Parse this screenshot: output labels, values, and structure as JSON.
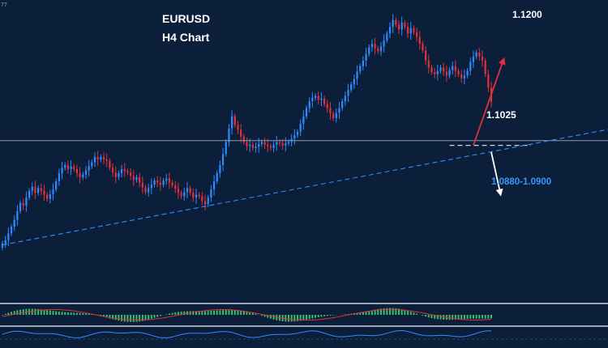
{
  "chart_data": {
    "type": "candlestick",
    "symbol": "EURUSD",
    "timeframe_label": "H4 Chart",
    "ylim": [
      1.08,
      1.123
    ],
    "bullish_color": "#2f8cff",
    "bearish_color": "#e2313a",
    "background_color": "#0b1e3a",
    "grid": false,
    "horizontal_line": 1.1032,
    "support_level": 1.1025,
    "trendline": {
      "from": [
        0,
        1.0878
      ],
      "to": [
        199,
        1.1045
      ]
    },
    "annotations": {
      "upper_target": "1.1200",
      "support": "1.1025",
      "lower_target": "1.0880-1.0900",
      "top_left_partial": "77"
    },
    "forecast_arrows": [
      {
        "direction": "up",
        "color": "#e2313a",
        "from_bar": 158,
        "from": 1.1025,
        "to_bar": 168,
        "to": 1.115
      },
      {
        "direction": "down",
        "color": "#ffffff",
        "from_bar": 164,
        "from": 1.1015,
        "to_bar": 167,
        "to": 1.0955
      }
    ],
    "closes": [
      1.088,
      1.0885,
      1.0895,
      1.0905,
      1.0915,
      1.0928,
      1.094,
      1.0936,
      1.0948,
      1.0958,
      1.0964,
      1.0955,
      1.0962,
      1.0958,
      1.0952,
      1.0946,
      1.0953,
      1.096,
      1.0972,
      1.0984,
      1.0992,
      1.0996,
      1.099,
      1.0994,
      1.099,
      1.0984,
      1.0978,
      1.0982,
      1.0988,
      1.0994,
      1.1,
      1.1008,
      1.1004,
      1.1008,
      1.1004,
      1.1002,
      1.0992,
      1.0985,
      1.0978,
      1.0984,
      1.099,
      1.0987,
      1.0985,
      1.098,
      1.0974,
      1.0978,
      1.097,
      1.0963,
      1.0956,
      1.0962,
      1.0967,
      1.0973,
      1.097,
      1.0967,
      1.0973,
      1.0976,
      1.097,
      1.0966,
      1.0961,
      1.0955,
      1.095,
      1.0956,
      1.0962,
      1.0955,
      1.0948,
      1.0952,
      1.095,
      1.0943,
      1.0938,
      1.0948,
      1.096,
      1.0972,
      1.0984,
      1.0996,
      1.1012,
      1.103,
      1.105,
      1.1068,
      1.1055,
      1.1048,
      1.1038,
      1.103,
      1.1024,
      1.1026,
      1.1021,
      1.1023,
      1.1027,
      1.103,
      1.1026,
      1.1024,
      1.1021,
      1.1026,
      1.103,
      1.1028,
      1.1025,
      1.1028,
      1.103,
      1.1035,
      1.104,
      1.1045,
      1.1057,
      1.1068,
      1.108,
      1.109,
      1.1095,
      1.1098,
      1.1092,
      1.1094,
      1.1086,
      1.108,
      1.1072,
      1.1065,
      1.1073,
      1.108,
      1.109,
      1.1098,
      1.1107,
      1.1115,
      1.1123,
      1.1134,
      1.1142,
      1.115,
      1.116,
      1.117,
      1.1175,
      1.1168,
      1.1164,
      1.1171,
      1.118,
      1.119,
      1.12,
      1.121,
      1.1203,
      1.1196,
      1.1206,
      1.12,
      1.119,
      1.1198,
      1.1192,
      1.1185,
      1.1175,
      1.1165,
      1.115,
      1.114,
      1.1133,
      1.113,
      1.1135,
      1.114,
      1.1134,
      1.1128,
      1.1136,
      1.1142,
      1.1135,
      1.113,
      1.1124,
      1.1128,
      1.1135,
      1.1148,
      1.1156,
      1.1162,
      1.1156,
      1.115,
      1.113,
      1.111,
      1.109
    ]
  },
  "labels": {
    "title_line1": "EURUSD",
    "title_line2": "H4 Chart",
    "price_1200": "1.1200",
    "price_1025": "1.1025",
    "target_range": "1.0880-1.0900",
    "corner": "77"
  }
}
